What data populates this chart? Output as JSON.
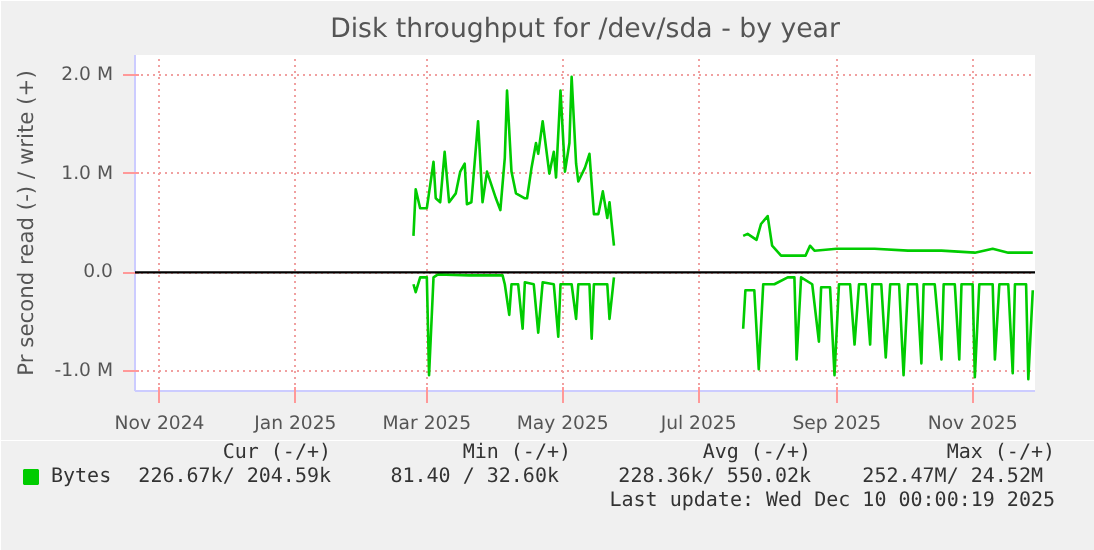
{
  "chart_data": {
    "type": "line",
    "title": "Disk throughput for /dev/sda - by year",
    "ylabel": "Pr second read (-) / write (+)",
    "xlim": [
      "2024-10-21",
      "2025-11-29"
    ],
    "ylim": [
      -1.2,
      2.2
    ],
    "xticks": [
      {
        "value": "2024-11-01",
        "label": "Nov 2024"
      },
      {
        "value": "2025-01-01",
        "label": "Jan 2025"
      },
      {
        "value": "2025-03-01",
        "label": "Mar 2025"
      },
      {
        "value": "2025-05-01",
        "label": "May 2025"
      },
      {
        "value": "2025-07-01",
        "label": "Jul 2025"
      },
      {
        "value": "2025-09-01",
        "label": "Sep 2025"
      },
      {
        "value": "2025-11-01",
        "label": "Nov 2025"
      }
    ],
    "yticks": [
      {
        "value": -1,
        "label": "-1.0 M"
      },
      {
        "value": 0,
        "label": "0.0"
      },
      {
        "value": 1,
        "label": "1.0 M"
      },
      {
        "value": 2,
        "label": "2.0 M"
      }
    ],
    "grid": true,
    "legend": "bottom",
    "ref_lines": [
      {
        "axis": "y",
        "value": 0,
        "label": null,
        "color": "#000000"
      }
    ],
    "series": [
      {
        "name": "Bytes",
        "color": "#00cc00",
        "x": [
          "2025-02-23",
          "2025-02-24",
          "2025-02-26",
          "2025-03-01",
          "2025-03-03",
          "2025-03-04",
          "2025-03-05",
          "2025-03-07",
          "2025-03-09",
          "2025-03-11",
          "2025-03-14",
          "2025-03-16",
          "2025-03-18",
          "2025-03-19",
          "2025-03-21",
          "2025-03-24",
          "2025-03-26",
          "2025-03-28",
          "2025-04-01",
          "2025-04-03",
          "2025-04-05",
          "2025-04-06",
          "2025-04-08",
          "2025-04-10",
          "2025-04-14",
          "2025-04-15",
          "2025-04-17",
          "2025-04-19",
          "2025-04-20",
          "2025-04-22",
          "2025-04-25",
          "2025-04-27",
          "2025-04-28",
          "2025-04-30",
          "2025-05-02",
          "2025-05-04",
          "2025-05-05",
          "2025-05-07",
          "2025-05-08",
          "2025-05-11",
          "2025-05-13",
          "2025-05-15",
          "2025-05-17",
          "2025-05-19",
          "2025-05-21",
          "2025-05-22",
          "2025-05-24",
          "2025-06-20",
          "2025-07-21",
          "2025-07-23",
          "2025-07-27",
          "2025-07-29",
          "2025-08-01",
          "2025-08-03",
          "2025-08-07",
          "2025-08-18",
          "2025-08-20",
          "2025-08-22",
          "2025-09-01",
          "2025-09-18",
          "2025-10-03",
          "2025-10-18",
          "2025-11-02",
          "2025-11-10",
          "2025-11-17",
          "2025-11-28"
        ],
        "values": [
          0.37,
          0.84,
          0.65,
          0.65,
          0.96,
          1.12,
          0.75,
          0.71,
          1.22,
          0.71,
          0.8,
          1.02,
          1.1,
          0.69,
          0.71,
          1.53,
          0.71,
          1.02,
          0.75,
          0.63,
          1.16,
          1.84,
          1.02,
          0.8,
          0.75,
          0.75,
          1.06,
          1.31,
          1.2,
          1.53,
          1.0,
          1.22,
          0.96,
          1.84,
          1.02,
          1.31,
          1.98,
          1.1,
          0.92,
          1.06,
          1.2,
          0.59,
          0.59,
          0.82,
          0.55,
          0.71,
          0.27,
          null,
          0.37,
          0.39,
          0.33,
          0.49,
          0.57,
          0.27,
          0.17,
          0.17,
          0.27,
          0.22,
          0.24,
          0.24,
          0.22,
          0.22,
          0.2,
          0.24,
          0.2,
          0.2
        ]
      },
      {
        "color": "#00cc00",
        "x": [
          "2025-02-23",
          "2025-02-24",
          "2025-02-26",
          "2025-03-01",
          "2025-03-02",
          "2025-03-04",
          "2025-03-06",
          "2025-03-20",
          "2025-04-04",
          "2025-04-05",
          "2025-04-07",
          "2025-04-08",
          "2025-04-11",
          "2025-04-13",
          "2025-04-14",
          "2025-04-18",
          "2025-04-20",
          "2025-04-22",
          "2025-04-27",
          "2025-04-29",
          "2025-04-30",
          "2025-05-05",
          "2025-05-07",
          "2025-05-08",
          "2025-05-13",
          "2025-05-14",
          "2025-05-15",
          "2025-05-21",
          "2025-05-22",
          "2025-05-24",
          "2025-06-20",
          "2025-07-21",
          "2025-07-22",
          "2025-07-26",
          "2025-07-28",
          "2025-07-30",
          "2025-08-04",
          "2025-08-10",
          "2025-08-13",
          "2025-08-14",
          "2025-08-16",
          "2025-08-21",
          "2025-08-24",
          "2025-08-25",
          "2025-08-29",
          "2025-08-31",
          "2025-09-02",
          "2025-09-07",
          "2025-09-09",
          "2025-09-11",
          "2025-09-14",
          "2025-09-16",
          "2025-09-17",
          "2025-09-21",
          "2025-09-23",
          "2025-09-25",
          "2025-09-29",
          "2025-10-01",
          "2025-10-03",
          "2025-10-07",
          "2025-10-09",
          "2025-10-10",
          "2025-10-15",
          "2025-10-18",
          "2025-10-19",
          "2025-10-24",
          "2025-10-26",
          "2025-10-27",
          "2025-11-01",
          "2025-11-02",
          "2025-11-04",
          "2025-11-10",
          "2025-11-11",
          "2025-11-13",
          "2025-11-17",
          "2025-11-19",
          "2025-11-20",
          "2025-11-25",
          "2025-11-26",
          "2025-11-28"
        ],
        "values": [
          -0.12,
          -0.2,
          -0.05,
          -0.05,
          -1.04,
          -0.05,
          -0.02,
          -0.03,
          -0.03,
          -0.12,
          -0.43,
          -0.12,
          -0.12,
          -0.57,
          -0.1,
          -0.12,
          -0.61,
          -0.1,
          -0.12,
          -0.65,
          -0.12,
          -0.12,
          -0.47,
          -0.12,
          -0.12,
          -0.67,
          -0.12,
          -0.12,
          -0.47,
          -0.05,
          null,
          -0.57,
          -0.18,
          -0.18,
          -0.98,
          -0.12,
          -0.12,
          -0.05,
          -0.05,
          -0.88,
          -0.05,
          -0.12,
          -0.7,
          -0.15,
          -0.15,
          -1.04,
          -0.12,
          -0.12,
          -0.73,
          -0.12,
          -0.12,
          -0.73,
          -0.12,
          -0.12,
          -0.86,
          -0.12,
          -0.12,
          -1.04,
          -0.12,
          -0.12,
          -0.92,
          -0.12,
          -0.12,
          -0.88,
          -0.12,
          -0.12,
          -0.88,
          -0.12,
          -0.12,
          -1.06,
          -0.12,
          -0.12,
          -0.88,
          -0.12,
          -0.12,
          -1.02,
          -0.12,
          -0.12,
          -1.08,
          -0.18
        ]
      }
    ],
    "annotations": [
      "Cur (-/+)",
      "Min (-/+)",
      "Avg (-/+)",
      "Max (-/+)",
      "226.67k/ 204.59k",
      "81.40 /  32.60k",
      "228.36k/ 550.02k",
      "252.47M/  24.52M",
      "Last update: Wed Dec 10 00:00:19 2025"
    ]
  }
}
